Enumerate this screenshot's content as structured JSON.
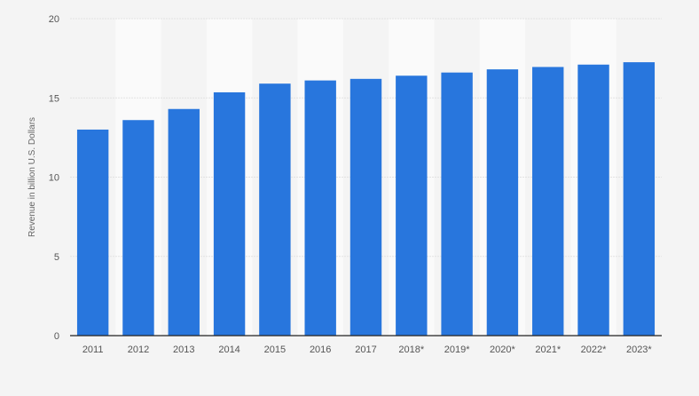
{
  "chart_data": {
    "type": "bar",
    "title": "",
    "xlabel": "",
    "ylabel": "Revenue in billion U.S. Dollars",
    "categories": [
      "2011",
      "2012",
      "2013",
      "2014",
      "2015",
      "2016",
      "2017",
      "2018*",
      "2019*",
      "2020*",
      "2021*",
      "2022*",
      "2023*"
    ],
    "values": [
      13.0,
      13.6,
      14.3,
      15.35,
      15.9,
      16.1,
      16.2,
      16.4,
      16.6,
      16.8,
      16.95,
      17.1,
      17.25
    ],
    "ylim": [
      0,
      20
    ],
    "yticks": [
      0,
      5,
      10,
      15,
      20
    ],
    "grid": true,
    "bar_color": "#2876dd"
  }
}
